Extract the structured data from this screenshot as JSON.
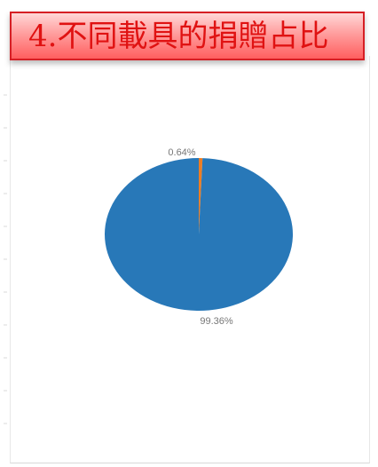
{
  "header": {
    "title": "4.不同載具的捐贈占比"
  },
  "chart_data": {
    "type": "pie",
    "title": "4.不同載具的捐贈占比",
    "series": [
      {
        "values": [
          99.36,
          0.64
        ]
      }
    ],
    "labels": [
      "99.36%",
      "0.64%"
    ],
    "colors": [
      "#2878b8",
      "#ee7d22"
    ],
    "legend": "none",
    "grid": false
  }
}
